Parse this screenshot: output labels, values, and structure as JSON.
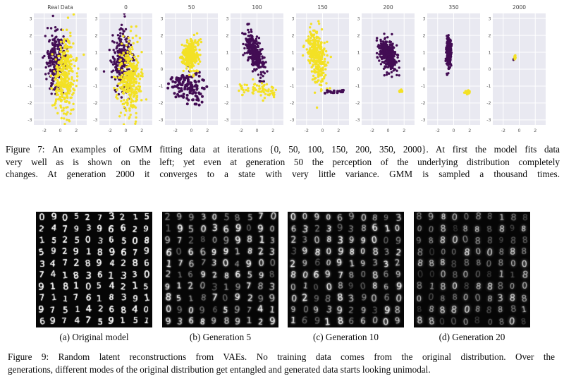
{
  "colors": {
    "purple": "#430d54",
    "yellow": "#f3e125",
    "plot_bg": "#e9e9f1",
    "grid_line": "#ffffff",
    "tick_text": "#555555",
    "title_text": "#444444",
    "digit_bg": "#060606",
    "digit_ink": "#ffffff",
    "page_bg": "#ffffff",
    "caption_text": "#0c0c0c"
  },
  "figure7": {
    "caption_lines": [
      "Figure 7: An examples of GMM fitting data at iterations {0, 50, 100, 150, 200, 350, 2000}. At first the model fits data",
      "very well as is shown on the left; yet even at generation 50 the perception of the underlying distribution completely",
      "changes. At generation 2000 it converges to a state with very little variance. GMM is sampled a thousand times."
    ],
    "chart_data": {
      "type": "scatter",
      "xlim": [
        -3.3,
        3.3
      ],
      "ylim": [
        -3.3,
        3.3
      ],
      "xticks": [
        -2,
        0,
        2
      ],
      "yticks": [
        3,
        2,
        1,
        0,
        -1,
        -2,
        -3
      ],
      "grid": true,
      "legend": "none",
      "panels": [
        {
          "title": "Real Data",
          "seed": 11,
          "clusters": [
            {
              "color": "purple",
              "n": 240,
              "cx": -0.55,
              "cy": 0.6,
              "sx": 0.6,
              "sy": 0.85
            },
            {
              "color": "yellow",
              "n": 320,
              "cx": 0.55,
              "cy": -0.55,
              "sx": 0.7,
              "sy": 1.15
            }
          ]
        },
        {
          "title": "0",
          "seed": 22,
          "clusters": [
            {
              "color": "purple",
              "n": 240,
              "cx": -0.5,
              "cy": 0.55,
              "sx": 0.6,
              "sy": 0.85
            },
            {
              "color": "yellow",
              "n": 320,
              "cx": 0.55,
              "cy": -0.6,
              "sx": 0.7,
              "sy": 1.1
            }
          ]
        },
        {
          "title": "50",
          "seed": 33,
          "clusters": [
            {
              "color": "purple",
              "n": 130,
              "cx": -0.4,
              "cy": -1.05,
              "sx": 1.25,
              "sy": 0.5,
              "r": 2.0
            },
            {
              "color": "yellow",
              "n": 300,
              "cx": -0.1,
              "cy": 0.85,
              "sx": 0.5,
              "sy": 0.45
            }
          ]
        },
        {
          "title": "100",
          "seed": 44,
          "clusters": [
            {
              "color": "purple",
              "n": 300,
              "cx": -0.35,
              "cy": 1.0,
              "sx": 0.55,
              "sy": 0.55,
              "corr": -0.55
            },
            {
              "color": "purple",
              "n": 1,
              "cx": -1.15,
              "cy": 2.65,
              "sx": 0.01,
              "sy": 0.01,
              "r": 2.0
            },
            {
              "color": "purple",
              "n": 2,
              "cx": 0.4,
              "cy": -0.5,
              "sx": 0.15,
              "sy": 0.2,
              "r": 2.0
            },
            {
              "color": "yellow",
              "n": 70,
              "cx": 0.1,
              "cy": -1.25,
              "sx": 2.4,
              "sy": 0.22,
              "xdist": "uniform"
            }
          ]
        },
        {
          "title": "150",
          "seed": 55,
          "clusters": [
            {
              "color": "yellow",
              "n": 300,
              "cx": -0.75,
              "cy": 0.8,
              "sx": 0.55,
              "sy": 0.72,
              "corr": -0.3
            },
            {
              "color": "purple",
              "n": 18,
              "cx": 1.4,
              "cy": -1.35,
              "sx": 1.2,
              "sy": 0.04,
              "xdist": "uniform",
              "r": 2.0
            }
          ]
        },
        {
          "title": "200",
          "seed": 66,
          "clusters": [
            {
              "color": "purple",
              "n": 300,
              "cx": 0.0,
              "cy": 0.85,
              "sx": 0.55,
              "sy": 0.5,
              "corr": -0.4
            },
            {
              "color": "yellow",
              "n": 22,
              "cx": 1.55,
              "cy": -1.3,
              "sx": 0.22,
              "sy": 0.04,
              "xdist": "uniform"
            }
          ]
        },
        {
          "title": "350",
          "seed": 77,
          "clusters": [
            {
              "color": "purple",
              "n": 350,
              "cx": -0.6,
              "cy": 1.0,
              "sx": 0.13,
              "sy": 0.4
            },
            {
              "color": "purple",
              "n": 1,
              "cx": -0.62,
              "cy": 0.05,
              "sx": 0.01,
              "sy": 0.01,
              "r": 2.0
            },
            {
              "color": "yellow",
              "n": 26,
              "cx": 1.7,
              "cy": -1.35,
              "sx": 0.15,
              "sy": 0.06
            }
          ]
        },
        {
          "title": "2000",
          "seed": 88,
          "clusters": [
            {
              "color": "purple",
              "n": 3,
              "cx": -0.62,
              "cy": 0.6,
              "sx": 0.04,
              "sy": 0.04
            },
            {
              "color": "yellow",
              "n": 14,
              "cx": -0.55,
              "cy": 0.72,
              "sx": 0.07,
              "sy": 0.05
            }
          ]
        }
      ]
    }
  },
  "figure9": {
    "panels": [
      {
        "label": "(a) Original model",
        "seed": 101,
        "blur": 0.2,
        "base_alpha": 0.95,
        "alpha_var": 0.2,
        "digits": [
          "0905273215",
          "2479396629",
          "1525036508",
          "5929189679",
          "3472894286",
          "7418361330",
          "9181054215",
          "7117618391",
          "9751426840",
          "6974759151"
        ]
      },
      {
        "label": "(b) Generation 5",
        "seed": 202,
        "blur": 0.9,
        "base_alpha": 0.8,
        "alpha_var": 0.45,
        "digits": [
          "2993058570",
          "1950369090",
          "9728099813",
          "6066991823",
          "1767304900",
          "2169286598",
          "9120319783",
          "8518709299",
          "0909659741",
          "9368989129"
        ]
      },
      {
        "label": "(c) Generation 10",
        "seed": 303,
        "blur": 1.1,
        "base_alpha": 0.78,
        "alpha_var": 0.45,
        "digits": [
          "0090690893",
          "6323938610",
          "2308399009",
          "3980980832",
          "2960919332",
          "8069780869",
          "0100890869",
          "0298839060",
          "9093929398",
          "1691866009"
        ]
      },
      {
        "label": "(d) Generation 20",
        "seed": 404,
        "blur": 1.4,
        "base_alpha": 0.55,
        "alpha_var": 0.35,
        "digits": [
          "8980088188",
          "0088888898",
          "9880088988",
          "8000800888",
          "8888880800",
          "0008008118",
          "8180888800",
          "0088008388",
          "8888088881",
          "8800080808"
        ]
      }
    ],
    "caption_lines": [
      "Figure 9: Random latent reconstructions from VAEs. No training data comes from the original distribution. Over the",
      "generations, different modes of the original distribution get entangled and generated data starts looking unimodal."
    ]
  }
}
